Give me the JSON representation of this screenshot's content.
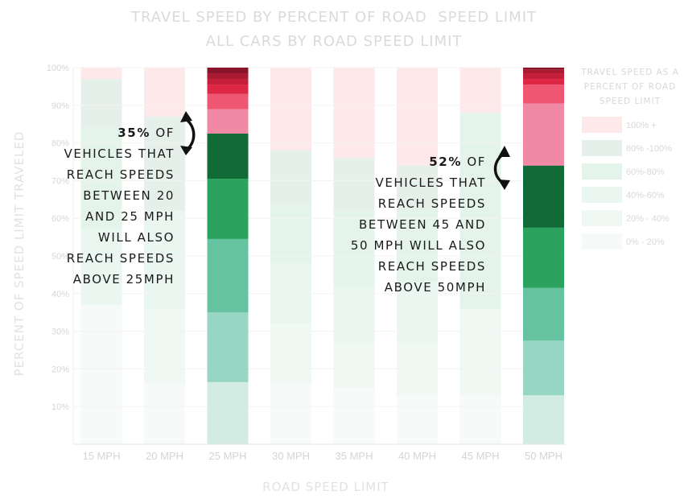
{
  "chart_data": {
    "type": "bar",
    "stacked": true,
    "title": "TRAVEL SPEED BY PERCENT OF ROAD  SPEED LIMIT",
    "subtitle": "ALL CARS BY ROAD SPEED LIMIT",
    "xlabel": "ROAD SPEED LIMIT",
    "ylabel": "PERCENT OF SPEED LIMIT TRAVELED",
    "ylim": [
      0,
      100
    ],
    "yticks": [
      "10%",
      "20%",
      "30%",
      "40%",
      "50%",
      "60%",
      "70%",
      "80%",
      "90%",
      "100%"
    ],
    "categories": [
      "15 MPH",
      "20 MPH",
      "25 MPH",
      "30 MPH",
      "35 MPH",
      "40 MPH",
      "45 MPH",
      "50 MPH"
    ],
    "highlighted": [
      "25 MPH",
      "50 MPH"
    ],
    "legend": {
      "title": [
        "TRAVEL SPEED AS A",
        "PERCENT OF ROAD",
        "SPEED LIMIT"
      ],
      "position": "right",
      "entries": [
        {
          "label": "100% +",
          "color": "#fde8ea"
        },
        {
          "label": "80% -100%",
          "color": "#e6f0ea"
        },
        {
          "label": "60%-80%",
          "color": "#e4f4ea"
        },
        {
          "label": "40%-60%",
          "color": "#eaf6f0"
        },
        {
          "label": "20% - 40%",
          "color": "#eff8f3"
        },
        {
          "label": "0% - 20%",
          "color": "#f6faf8"
        }
      ]
    },
    "series_faint": [
      {
        "name": "0% - 20%",
        "color": "#f6faf8",
        "values": [
          37,
          16,
          16,
          16,
          15,
          13,
          13,
          13
        ]
      },
      {
        "name": "20% - 40%",
        "color": "#eff8f3",
        "values": [
          0,
          20,
          19,
          16,
          12,
          14,
          23,
          14
        ]
      },
      {
        "name": "40%-60%",
        "color": "#eaf6f0",
        "values": [
          20,
          26,
          20,
          16,
          15,
          16,
          0,
          15
        ]
      },
      {
        "name": "60%-80%",
        "color": "#e4f4ea",
        "values": [
          27,
          0,
          16,
          16,
          20,
          19,
          52,
          16
        ]
      },
      {
        "name": "80% -100%",
        "color": "#e6f0ea",
        "values": [
          13,
          25,
          11,
          14,
          14,
          12,
          0,
          16
        ]
      },
      {
        "name": "100% +",
        "color": "#fde8ea",
        "values": [
          3,
          13,
          18,
          22,
          24,
          26,
          12,
          26
        ]
      }
    ],
    "bar_25": [
      {
        "value": 16.5,
        "color": "#d2ece4"
      },
      {
        "value": 18.5,
        "color": "#98d6c4"
      },
      {
        "value": 19.5,
        "color": "#65c3a1"
      },
      {
        "value": 16.0,
        "color": "#2ba35e"
      },
      {
        "value": 12.0,
        "color": "#126a36"
      },
      {
        "value": 6.5,
        "color": "#f08aa4"
      },
      {
        "value": 4.0,
        "color": "#ee5672"
      },
      {
        "value": 2.5,
        "color": "#dd2743"
      },
      {
        "value": 1.5,
        "color": "#c41e3a"
      },
      {
        "value": 1.5,
        "color": "#aa1a33"
      },
      {
        "value": 1.5,
        "color": "#8a1429"
      }
    ],
    "bar_50": [
      {
        "value": 13.0,
        "color": "#d2ece4"
      },
      {
        "value": 14.5,
        "color": "#98d6c4"
      },
      {
        "value": 14.0,
        "color": "#65c3a1"
      },
      {
        "value": 16.0,
        "color": "#2ba35e"
      },
      {
        "value": 16.5,
        "color": "#126a36"
      },
      {
        "value": 16.5,
        "color": "#f08aa4"
      },
      {
        "value": 5.0,
        "color": "#ee5672"
      },
      {
        "value": 1.5,
        "color": "#dd2743"
      },
      {
        "value": 1.5,
        "color": "#c41e3a"
      },
      {
        "value": 1.0,
        "color": "#aa1a33"
      },
      {
        "value": 0.5,
        "color": "#8a1429"
      }
    ]
  },
  "annotations": {
    "left": {
      "percent": "35%",
      "lines": [
        "OF",
        "VEHICLES THAT",
        "REACH SPEEDS",
        "BETWEEN 20",
        "AND 25 MPH",
        "WILL ALSO",
        "REACH SPEEDS",
        "ABOVE 25MPH"
      ]
    },
    "right": {
      "percent": "52%",
      "lines": [
        "OF",
        "VEHICLES THAT",
        "REACH SPEEDS",
        "BETWEEN 45 AND",
        "50 MPH WILL ALSO",
        "REACH SPEEDS",
        "ABOVE 50MPH"
      ]
    }
  }
}
